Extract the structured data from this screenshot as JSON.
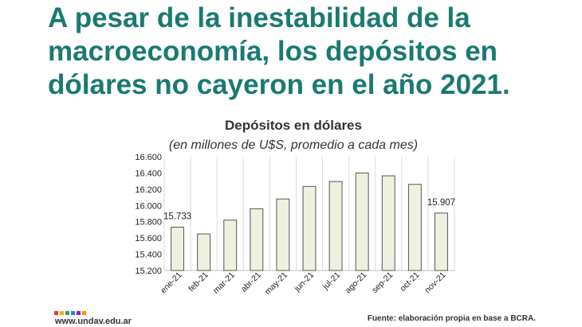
{
  "headline": {
    "regular": "A pesar de la inestabilidad de la macroeconomía, ",
    "bold": "los depósitos en dólares no cayeron en el año 2021."
  },
  "footer": {
    "url": "www.undav.edu.ar",
    "source": "Fuente: elaboración propia en base a BCRA.",
    "logo_colors": [
      "#e53935",
      "#f9a825",
      "#43a047",
      "#1e88e5",
      "#8e24aa",
      "#fb8c00"
    ]
  },
  "chart_data": {
    "type": "bar",
    "title": "Depósitos en dólares",
    "subtitle": "(en millones de U$S, promedio a cada mes)",
    "categories": [
      "ene-21",
      "feb-21",
      "mar-21",
      "abr-21",
      "may-21",
      "jun-21",
      "jul-21",
      "ago-21",
      "sep-21",
      "oct-21",
      "nov-21"
    ],
    "values": [
      15733,
      15650,
      15820,
      15960,
      16080,
      16235,
      16295,
      16400,
      16365,
      16260,
      15907
    ],
    "data_labels": [
      {
        "index": 0,
        "text": "15.733"
      },
      {
        "index": 10,
        "text": "15.907"
      }
    ],
    "yticks": [
      {
        "value": 15200,
        "label": "15.200"
      },
      {
        "value": 15400,
        "label": "15.400"
      },
      {
        "value": 15600,
        "label": "15.600"
      },
      {
        "value": 15800,
        "label": "15.800"
      },
      {
        "value": 16000,
        "label": "16.000"
      },
      {
        "value": 16200,
        "label": "16.200"
      },
      {
        "value": 16400,
        "label": "16.400"
      },
      {
        "value": 16600,
        "label": "16.600"
      }
    ],
    "ylim": [
      15200,
      16600
    ],
    "grid": "vertical",
    "bar_color": "#eef1df",
    "bar_stroke": "#555555"
  }
}
